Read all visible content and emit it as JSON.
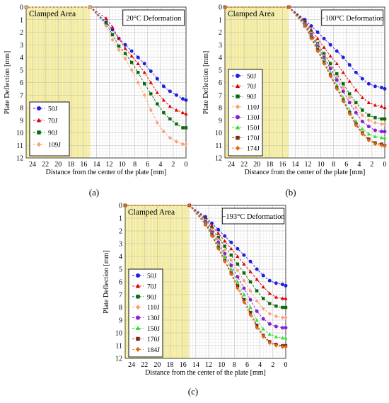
{
  "chart_data": [
    {
      "type": "line",
      "panel_label": "(a)",
      "title": "",
      "annotation": "20°C Deformation",
      "region_label": "Clamped Area",
      "clamped_range": [
        15,
        25
      ],
      "xlabel": "Distance from the center of the plate [mm]",
      "ylabel": "Plate Deflection [mm]",
      "xlim": [
        25,
        0
      ],
      "ylim": [
        12,
        0
      ],
      "x_ticks": [
        24,
        22,
        20,
        18,
        16,
        14,
        12,
        10,
        8,
        6,
        4,
        2,
        0
      ],
      "y_ticks": [
        0,
        1,
        2,
        3,
        4,
        5,
        6,
        7,
        8,
        9,
        10,
        11,
        12
      ],
      "grid": true,
      "legend_position": "bottom-left",
      "x": [
        25,
        15,
        12.5,
        11.5,
        10.5,
        9.5,
        8.5,
        7.5,
        6.5,
        5.5,
        4.5,
        3.5,
        2.5,
        1.5,
        0.5,
        0
      ],
      "series": [
        {
          "name": "50J",
          "color": "#1f1fe0",
          "marker": "circle",
          "values": [
            0,
            0,
            1.2,
            1.8,
            2.5,
            3.0,
            3.5,
            4.0,
            4.5,
            5.1,
            5.7,
            6.3,
            6.7,
            7.0,
            7.3,
            7.4
          ]
        },
        {
          "name": "70J",
          "color": "#e00000",
          "marker": "triangle",
          "values": [
            0,
            0,
            0.9,
            1.6,
            2.5,
            3.3,
            3.9,
            4.5,
            5.2,
            6.0,
            6.8,
            7.4,
            7.9,
            8.2,
            8.4,
            8.5
          ]
        },
        {
          "name": "90J",
          "color": "#0a6b0a",
          "marker": "square",
          "values": [
            0,
            0,
            1.3,
            2.2,
            3.1,
            3.7,
            4.4,
            5.2,
            6.1,
            6.9,
            7.7,
            8.4,
            8.9,
            9.3,
            9.6,
            9.6
          ]
        },
        {
          "name": "109J",
          "color": "#f7a07a",
          "marker": "diamond",
          "values": [
            0,
            0,
            1.5,
            2.6,
            3.4,
            4.1,
            5.0,
            6.0,
            7.0,
            8.2,
            9.2,
            9.9,
            10.4,
            10.7,
            10.9,
            10.9
          ]
        }
      ]
    },
    {
      "type": "line",
      "panel_label": "(b)",
      "title": "",
      "annotation": "−100°C Deformation",
      "region_label": "Clamped Area",
      "clamped_range": [
        15,
        25
      ],
      "xlabel": "Distance from the center of the plate [mm]",
      "ylabel": "Plate Deflection [mm]",
      "xlim": [
        25,
        0
      ],
      "ylim": [
        12,
        0
      ],
      "x_ticks": [
        24,
        22,
        20,
        18,
        16,
        14,
        12,
        10,
        8,
        6,
        4,
        2,
        0
      ],
      "y_ticks": [
        0,
        1,
        2,
        3,
        4,
        5,
        6,
        7,
        8,
        9,
        10,
        11,
        12
      ],
      "grid": true,
      "legend_position": "center-left",
      "x": [
        25,
        15,
        12.5,
        11.5,
        10.5,
        9.5,
        8.5,
        7.5,
        6.5,
        5.5,
        4.5,
        3.5,
        2.5,
        1.5,
        0.5,
        0
      ],
      "series": [
        {
          "name": "50J",
          "color": "#1f1fe0",
          "marker": "circle",
          "values": [
            0,
            0,
            1.0,
            1.5,
            2.0,
            2.5,
            3.0,
            3.5,
            4.0,
            4.6,
            5.2,
            5.7,
            6.1,
            6.3,
            6.4,
            6.5
          ]
        },
        {
          "name": "70J",
          "color": "#e00000",
          "marker": "triangle",
          "values": [
            0,
            0,
            1.1,
            1.8,
            2.5,
            3.2,
            3.9,
            4.5,
            5.2,
            5.9,
            6.6,
            7.2,
            7.6,
            7.8,
            7.9,
            8.0
          ]
        },
        {
          "name": "90J",
          "color": "#0a6b0a",
          "marker": "square",
          "values": [
            0,
            0,
            1.2,
            2.0,
            2.9,
            3.7,
            4.5,
            5.3,
            6.1,
            6.9,
            7.6,
            8.2,
            8.6,
            8.8,
            8.9,
            8.9
          ]
        },
        {
          "name": "110J",
          "color": "#f7a07a",
          "marker": "diamond",
          "values": [
            0,
            0,
            1.3,
            2.1,
            3.0,
            3.9,
            4.8,
            5.6,
            6.4,
            7.2,
            8.0,
            8.6,
            9.0,
            9.2,
            9.3,
            9.3
          ]
        },
        {
          "name": "130J",
          "color": "#8a1fd0",
          "marker": "circle",
          "values": [
            0,
            0,
            1.3,
            2.2,
            3.1,
            4.0,
            4.9,
            5.8,
            6.7,
            7.6,
            8.4,
            9.1,
            9.5,
            9.8,
            9.9,
            9.9
          ]
        },
        {
          "name": "150J",
          "color": "#33dd33",
          "marker": "triangle",
          "values": [
            0,
            0,
            1.4,
            2.3,
            3.2,
            4.2,
            5.2,
            6.2,
            7.2,
            8.2,
            9.1,
            9.7,
            10.1,
            10.3,
            10.4,
            10.4
          ]
        },
        {
          "name": "170J",
          "color": "#7a2a1a",
          "marker": "square",
          "values": [
            0,
            0,
            1.5,
            2.4,
            3.4,
            4.4,
            5.4,
            6.4,
            7.4,
            8.4,
            9.3,
            10.0,
            10.5,
            10.8,
            10.9,
            11.0
          ]
        },
        {
          "name": "174J",
          "color": "#e06a10",
          "marker": "diamond",
          "values": [
            0,
            0,
            1.5,
            2.5,
            3.5,
            4.5,
            5.5,
            6.5,
            7.5,
            8.5,
            9.4,
            10.1,
            10.6,
            10.9,
            11.0,
            11.0
          ]
        }
      ]
    },
    {
      "type": "line",
      "panel_label": "(c)",
      "title": "",
      "annotation": "−193°C Deformation",
      "region_label": "Clamped Area",
      "clamped_range": [
        15,
        25
      ],
      "xlabel": "Distance from the center of the plate [mm]",
      "ylabel": "Plate Deflection [mm]",
      "xlim": [
        25,
        0
      ],
      "ylim": [
        12,
        0
      ],
      "x_ticks": [
        24,
        22,
        20,
        18,
        16,
        14,
        12,
        10,
        8,
        6,
        4,
        2,
        0
      ],
      "y_ticks": [
        0,
        1,
        2,
        3,
        4,
        5,
        6,
        7,
        8,
        9,
        10,
        11,
        12
      ],
      "grid": true,
      "legend_position": "center-left",
      "x": [
        25,
        15,
        12.5,
        11.5,
        10.5,
        9.5,
        8.5,
        7.5,
        6.5,
        5.5,
        4.5,
        3.5,
        2.5,
        1.5,
        0.5,
        0
      ],
      "series": [
        {
          "name": "50J",
          "color": "#1f1fe0",
          "marker": "circle",
          "values": [
            0,
            0,
            0.9,
            1.4,
            1.9,
            2.4,
            2.9,
            3.4,
            3.9,
            4.4,
            5.0,
            5.5,
            5.9,
            6.1,
            6.2,
            6.3
          ]
        },
        {
          "name": "70J",
          "color": "#e00000",
          "marker": "triangle",
          "values": [
            0,
            0,
            1.0,
            1.6,
            2.2,
            2.8,
            3.4,
            4.0,
            4.6,
            5.2,
            5.8,
            6.4,
            6.9,
            7.2,
            7.3,
            7.3
          ]
        },
        {
          "name": "90J",
          "color": "#0a6b0a",
          "marker": "square",
          "values": [
            0,
            0,
            1.1,
            1.8,
            2.5,
            3.2,
            3.9,
            4.6,
            5.3,
            6.0,
            6.7,
            7.3,
            7.7,
            7.9,
            8.0,
            8.0
          ]
        },
        {
          "name": "110J",
          "color": "#f7a07a",
          "marker": "diamond",
          "values": [
            0,
            0,
            1.2,
            1.9,
            2.7,
            3.5,
            4.3,
            5.1,
            5.9,
            6.7,
            7.5,
            8.1,
            8.5,
            8.7,
            8.8,
            8.8
          ]
        },
        {
          "name": "130J",
          "color": "#8a1fd0",
          "marker": "circle",
          "values": [
            0,
            0,
            1.3,
            2.1,
            2.9,
            3.8,
            4.7,
            5.6,
            6.5,
            7.4,
            8.3,
            8.9,
            9.3,
            9.5,
            9.6,
            9.6
          ]
        },
        {
          "name": "150J",
          "color": "#33dd33",
          "marker": "triangle",
          "values": [
            0,
            0,
            1.4,
            2.2,
            3.1,
            4.0,
            5.0,
            6.0,
            7.0,
            8.0,
            9.0,
            9.7,
            10.1,
            10.3,
            10.4,
            10.4
          ]
        },
        {
          "name": "170J",
          "color": "#7a2a1a",
          "marker": "square",
          "values": [
            0,
            0,
            1.5,
            2.3,
            3.3,
            4.3,
            5.3,
            6.3,
            7.4,
            8.4,
            9.4,
            10.2,
            10.7,
            10.9,
            11.0,
            11.0
          ]
        },
        {
          "name": "184J",
          "color": "#e06a10",
          "marker": "diamond",
          "values": [
            0,
            0,
            1.5,
            2.4,
            3.4,
            4.4,
            5.4,
            6.5,
            7.6,
            8.6,
            9.6,
            10.3,
            10.8,
            11.0,
            11.1,
            11.1
          ]
        }
      ]
    }
  ]
}
